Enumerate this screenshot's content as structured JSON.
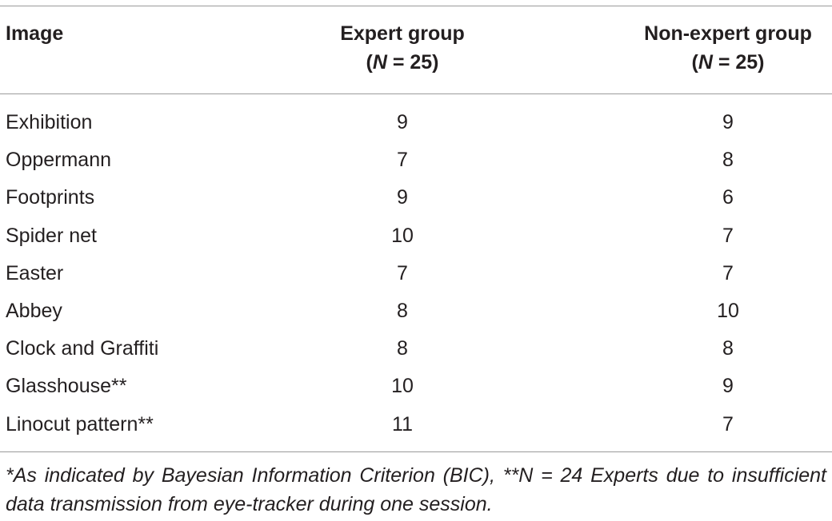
{
  "table": {
    "headers": {
      "image": "Image",
      "expert_line1": "Expert group",
      "expert_n_label": "N",
      "expert_n_rest": " = 25)",
      "nonexpert_line1": "Non-expert group",
      "nonexpert_n_label": "N",
      "nonexpert_n_rest": " = 25)"
    },
    "rows": [
      {
        "image": "Exhibition",
        "expert": "9",
        "nonexpert": "9"
      },
      {
        "image": "Oppermann",
        "expert": "7",
        "nonexpert": "8"
      },
      {
        "image": "Footprints",
        "expert": "9",
        "nonexpert": "6"
      },
      {
        "image": "Spider net",
        "expert": "10",
        "nonexpert": "7"
      },
      {
        "image": "Easter",
        "expert": "7",
        "nonexpert": "7"
      },
      {
        "image": "Abbey",
        "expert": "8",
        "nonexpert": "10"
      },
      {
        "image": "Clock and Graffiti",
        "expert": "8",
        "nonexpert": "8"
      },
      {
        "image": "Glasshouse**",
        "expert": "10",
        "nonexpert": "9"
      },
      {
        "image": "Linocut pattern**",
        "expert": "11",
        "nonexpert": "7"
      }
    ],
    "footnote": "*As indicated by Bayesian Information Criterion (BIC), **N = 24 Experts due to insufficient data transmission from eye-tracker during one session."
  }
}
